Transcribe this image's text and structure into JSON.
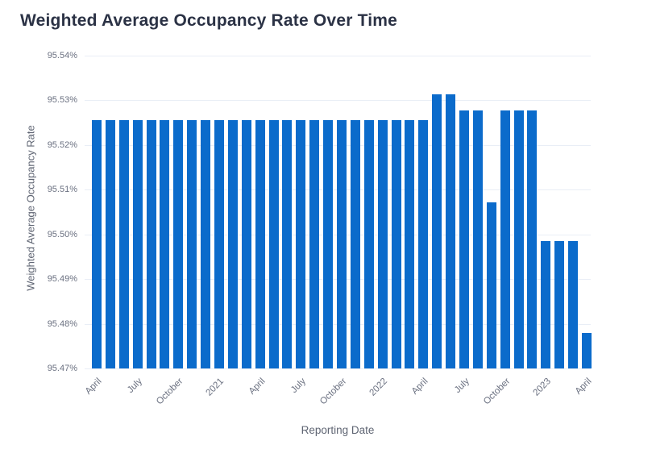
{
  "chart_data": {
    "type": "bar",
    "title": "Weighted Average Occupancy Rate Over Time",
    "xlabel": "Reporting Date",
    "ylabel": "Weighted Average Occupancy Rate",
    "x": [
      "2020-04",
      "2020-05",
      "2020-06",
      "2020-07",
      "2020-08",
      "2020-09",
      "2020-10",
      "2020-11",
      "2020-12",
      "2021-01",
      "2021-02",
      "2021-03",
      "2021-04",
      "2021-05",
      "2021-06",
      "2021-07",
      "2021-08",
      "2021-09",
      "2021-10",
      "2021-11",
      "2021-12",
      "2022-01",
      "2022-02",
      "2022-03",
      "2022-04",
      "2022-05",
      "2022-06",
      "2022-07",
      "2022-08",
      "2022-09",
      "2022-10",
      "2022-11",
      "2022-12",
      "2023-01",
      "2023-02",
      "2023-03",
      "2023-04"
    ],
    "values": [
      95.5256,
      95.5256,
      95.5256,
      95.5256,
      95.5256,
      95.5256,
      95.5256,
      95.5256,
      95.5256,
      95.5256,
      95.5256,
      95.5256,
      95.5256,
      95.5256,
      95.5256,
      95.5256,
      95.5256,
      95.5256,
      95.5256,
      95.5256,
      95.5256,
      95.5256,
      95.5256,
      95.5256,
      95.5256,
      95.5314,
      95.5314,
      95.5278,
      95.5278,
      95.5071,
      95.5278,
      95.5278,
      95.5278,
      95.4985,
      95.4985,
      95.4985,
      95.4779
    ],
    "x_tick_labels": [
      "April",
      "July",
      "October",
      "2021",
      "April",
      "July",
      "October",
      "2022",
      "April",
      "July",
      "October",
      "2023",
      "April"
    ],
    "x_tick_every": 3,
    "y_ticks": [
      "95.54%",
      "95.53%",
      "95.52%",
      "95.51%",
      "95.50%",
      "95.49%",
      "95.48%",
      "95.47%"
    ],
    "ylim": [
      95.47,
      95.54
    ],
    "grid": true,
    "legend": "none",
    "bar_color": "#0b6bcb",
    "grid_color": "#e9eef6",
    "title_color": "#2b3245",
    "tick_color": "#6a7080"
  }
}
